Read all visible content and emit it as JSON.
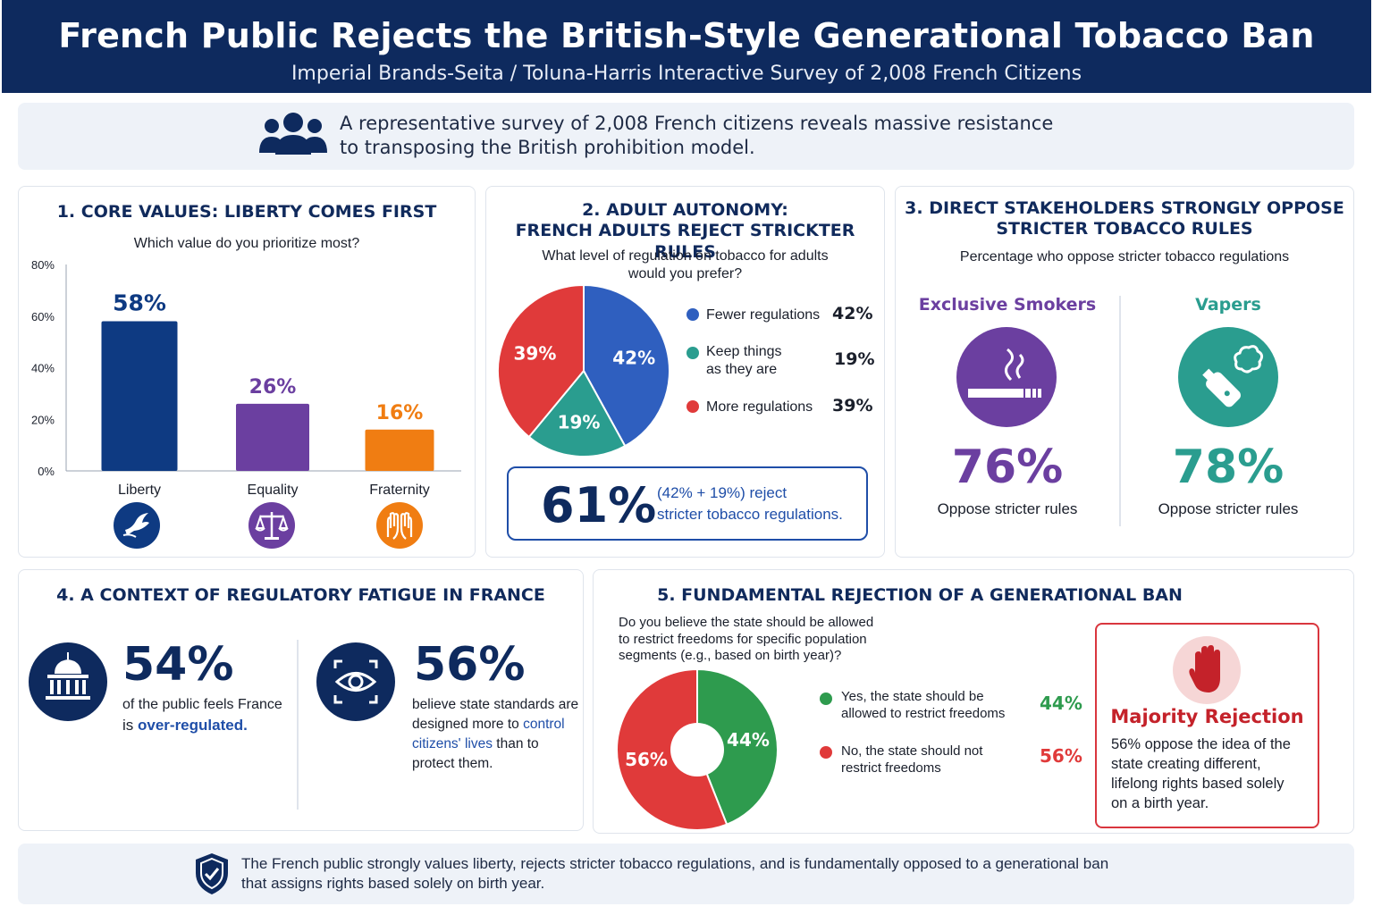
{
  "header": {
    "title": "French Public Rejects the British-Style Generational Tobacco Ban",
    "subtitle": "Imperial Brands-Seita / Toluna-Harris Interactive Survey of 2,008 French Citizens"
  },
  "intro": {
    "line1": "A representative survey of 2,008 French citizens reveals massive resistance",
    "line2": "to transposing the British prohibition model."
  },
  "colors": {
    "navy": "#0e2a5e",
    "blue": "#2f5fbf",
    "purple": "#6b3fa0",
    "orange": "#f07d12",
    "teal": "#2a9d8f",
    "red": "#e03a3a",
    "green": "#2e9b4e"
  },
  "section1": {
    "title": "1. CORE VALUES: LIBERTY COMES FIRST",
    "question": "Which value do you prioritize most?",
    "icons": [
      "dove-icon",
      "scales-icon",
      "hands-icon"
    ]
  },
  "section2": {
    "title_line1": "2. ADULT AUTONOMY:",
    "title_line2": "FRENCH ADULTS REJECT STRICKTER RULES",
    "question_line1": "What level of regulation on tobacco for adults",
    "question_line2": "would you prefer?",
    "legend": [
      {
        "label_line1": "Fewer regulations",
        "label_line2": "",
        "value": "42%"
      },
      {
        "label_line1": "Keep things",
        "label_line2": "as they are",
        "value": "19%"
      },
      {
        "label_line1": "More regulations",
        "label_line2": "",
        "value": "39%"
      }
    ],
    "summary_value": "61%",
    "summary_line1": "(42% + 19%) reject",
    "summary_line2": "stricter tobacco regulations."
  },
  "section3": {
    "title_line1": "3. DIRECT STAKEHOLDERS STRONGLY OPPOSE",
    "title_line2": "STRICTER TOBACCO RULES",
    "subtitle": "Percentage who oppose stricter tobacco regulations",
    "groups": [
      {
        "name": "Exclusive Smokers",
        "value": "76%",
        "caption": "Oppose stricter rules",
        "icon": "cigarette-icon"
      },
      {
        "name": "Vapers",
        "value": "78%",
        "caption": "Oppose stricter rules",
        "icon": "vape-icon"
      }
    ]
  },
  "section4": {
    "title": "4. A CONTEXT OF REGULATORY FATIGUE IN FRANCE",
    "stat1": {
      "value": "54%",
      "text_a": "of the public feels France",
      "text_b": "is ",
      "highlight": "over-regulated.",
      "icon": "government-building-icon"
    },
    "stat2": {
      "value": "56%",
      "text_a": "believe state standards are",
      "text_b": "designed more to ",
      "highlight_a": "control",
      "highlight_b": "citizens' lives",
      "text_c": " than to",
      "text_d": "protect them.",
      "icon": "eye-surveillance-icon"
    }
  },
  "section5": {
    "title": "5. FUNDAMENTAL REJECTION OF A GENERATIONAL BAN",
    "question_line1": "Do you believe the state should be allowed",
    "question_line2": "to restrict freedoms for specific population",
    "question_line3": "segments (e.g., based on birth year)?",
    "legend": [
      {
        "label_line1": "Yes, the state should be",
        "label_line2": "allowed to restrict freedoms",
        "value": "44%"
      },
      {
        "label_line1": "No, the state should not",
        "label_line2": "restrict freedoms",
        "value": "56%"
      }
    ],
    "callout_title": "Majority Rejection",
    "callout_line1": "56% oppose the idea of the",
    "callout_line2": "state creating different,",
    "callout_line3": "lifelong rights based solely",
    "callout_line4": "on a birth year."
  },
  "footer": {
    "line1": "The French public strongly values liberty, rejects stricter tobacco regulations, and is fundamentally opposed to a generational ban",
    "line2": "that assigns rights based solely on birth year."
  },
  "chart_data": [
    {
      "type": "bar",
      "title": "1. CORE VALUES: LIBERTY COMES FIRST",
      "categories": [
        "Liberty",
        "Equality",
        "Fraternity"
      ],
      "values": [
        58,
        26,
        16
      ],
      "labels": [
        "58%",
        "26%",
        "16%"
      ],
      "colors": [
        "#0e3a82",
        "#6b3fa0",
        "#f07d12"
      ],
      "yticks": [
        "0%",
        "20%",
        "40%",
        "60%",
        "80%"
      ],
      "ylim": [
        0,
        80
      ]
    },
    {
      "type": "pie",
      "title": "2. ADULT AUTONOMY",
      "categories": [
        "Fewer regulations",
        "Keep things as they are",
        "More regulations"
      ],
      "values": [
        42,
        19,
        39
      ],
      "labels": [
        "42%",
        "19%",
        "39%"
      ],
      "colors": [
        "#2f5fbf",
        "#2a9d8f",
        "#e03a3a"
      ]
    },
    {
      "type": "pie",
      "title": "5. FUNDAMENTAL REJECTION OF A GENERATIONAL BAN",
      "categories": [
        "Yes, the state should be allowed to restrict freedoms",
        "No, the state should not restrict freedoms"
      ],
      "values": [
        44,
        56
      ],
      "labels": [
        "44%",
        "56%"
      ],
      "colors": [
        "#2e9b4e",
        "#e03a3a"
      ]
    }
  ]
}
